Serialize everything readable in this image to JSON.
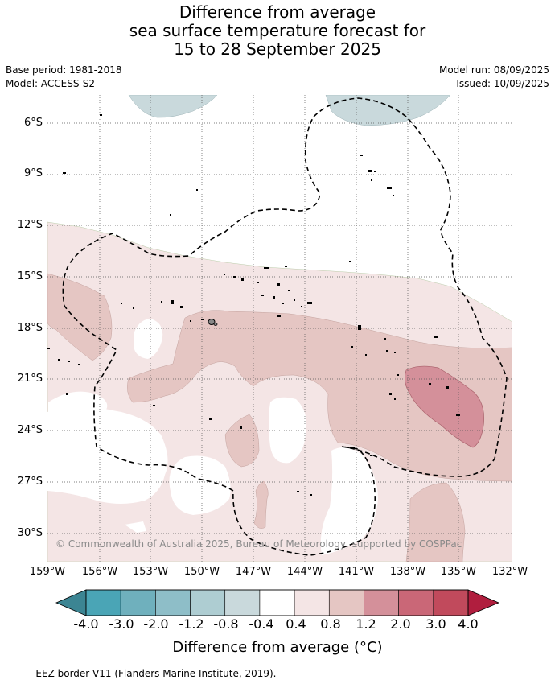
{
  "title": {
    "line1": "Difference from average",
    "line2": "sea surface temperature forecast for",
    "line3": "15 to 28 September 2025"
  },
  "meta": {
    "base_period": "Base period: 1981-2018",
    "model": "Model: ACCESS-S2",
    "model_run": "Model run: 08/09/2025",
    "issued": "Issued: 10/09/2025"
  },
  "map": {
    "lat_labels": [
      "6°S",
      "9°S",
      "12°S",
      "15°S",
      "18°S",
      "21°S",
      "24°S",
      "27°S",
      "30°S"
    ],
    "lon_labels": [
      "159°W",
      "156°W",
      "153°W",
      "150°W",
      "147°W",
      "144°W",
      "141°W",
      "138°W",
      "135°W",
      "132°W"
    ],
    "copyright": "© Commonwealth of Australia 2025, Bureau of Meteorology, supported by COSPPac",
    "layers": {
      "cool_-0.8_to_-0.4": "#c9d9dc",
      "warm_0.4_to_0.8": "#f4e5e5",
      "warm_0.8_to_1.2": "#e5c6c3",
      "warm_1.2_to_2.0": "#d4909a",
      "eez_border": "dashed black",
      "islands": "black"
    }
  },
  "colorbar": {
    "ticks": [
      "-4.0",
      "-3.0",
      "-2.0",
      "-1.2",
      "-0.8",
      "-0.4",
      "0.4",
      "0.8",
      "1.2",
      "2.0",
      "3.0",
      "4.0"
    ],
    "colors": [
      "#3c8593",
      "#4aa5b6",
      "#6fb0bd",
      "#8ebec8",
      "#aecdd2",
      "#c9d9dc",
      "#ffffff",
      "#f4e5e5",
      "#e5c6c3",
      "#d4909a",
      "#ca6777",
      "#c14a5c",
      "#b01e3e"
    ],
    "label": "Difference from average (°C)"
  },
  "footer": {
    "legend": "-- -- -- EEZ border V11 (Flanders Marine Institute, 2019)."
  }
}
